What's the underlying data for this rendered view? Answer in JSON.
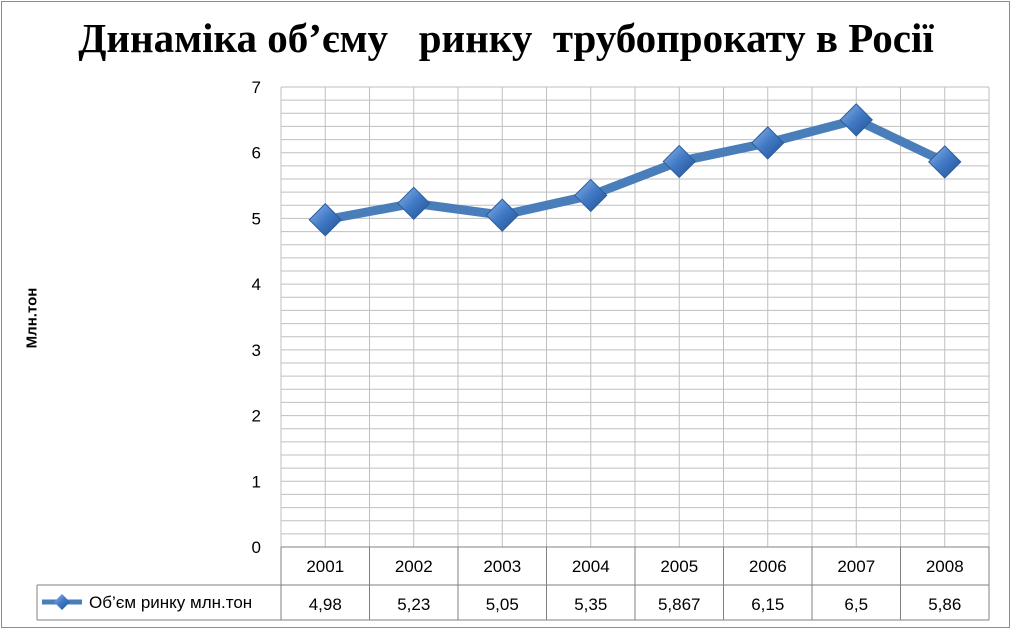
{
  "chart_data": {
    "type": "line",
    "title": "Динаміка об’єму   ринку  трубопрокату в Росії",
    "xlabel": "",
    "ylabel": "Млн.тон",
    "categories": [
      "2001",
      "2002",
      "2003",
      "2004",
      "2005",
      "2006",
      "2007",
      "2008"
    ],
    "series": [
      {
        "name": "Об’єм ринку млн.тон",
        "values": [
          4.98,
          5.23,
          5.05,
          5.35,
          5.867,
          6.15,
          6.5,
          5.86
        ],
        "labels": [
          "4,98",
          "5,23",
          "5,05",
          "5,35",
          "5,867",
          "6,15",
          "6,5",
          "5,86"
        ],
        "color": "#4a7ebb"
      }
    ],
    "ylim": [
      0,
      7
    ],
    "yticks": [
      "0",
      "1",
      "2",
      "3",
      "4",
      "5",
      "6",
      "7"
    ],
    "grid": true,
    "minor_grid_step": 0.2,
    "legend": "data-table-left"
  }
}
